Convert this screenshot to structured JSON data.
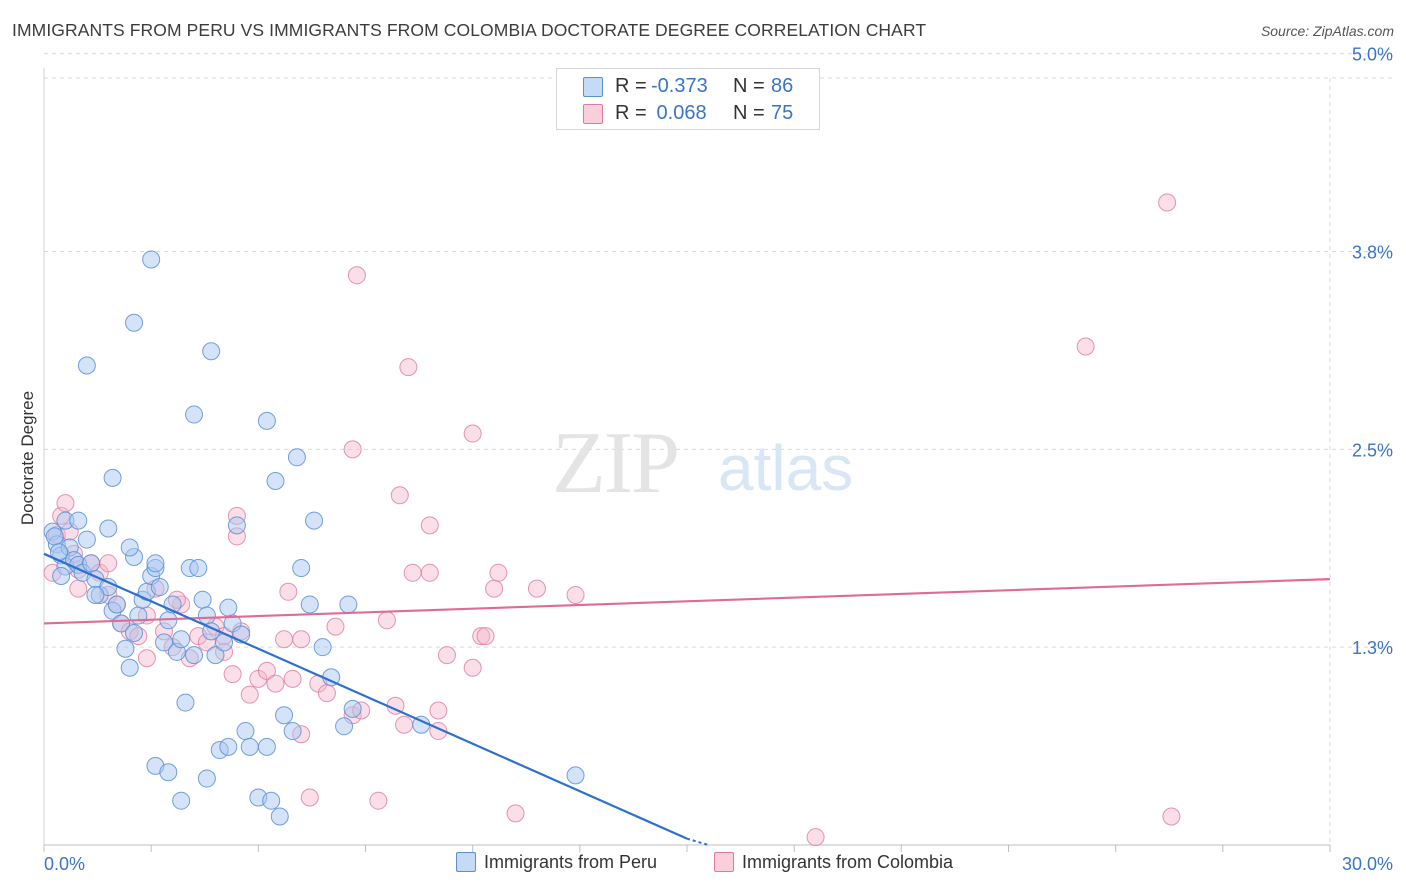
{
  "header": {
    "title": "IMMIGRANTS FROM PERU VS IMMIGRANTS FROM COLOMBIA DOCTORATE DEGREE CORRELATION CHART",
    "source": "Source: ZipAtlas.com"
  },
  "legend": {
    "rows": [
      {
        "r_label": "R =",
        "r_value": "-0.373",
        "n_label": "N =",
        "n_value": "86"
      },
      {
        "r_label": "R =",
        "r_value": " 0.068",
        "n_label": "N =",
        "n_value": "75"
      }
    ]
  },
  "watermark": {
    "zip": "ZIP",
    "atlas": "atlas"
  },
  "colors": {
    "peru_fill": "#a9c8ef",
    "peru_stroke": "#5b8fd6",
    "peru_line": "#2f6fcf",
    "colombia_fill": "#f5b8cb",
    "colombia_stroke": "#e07a9c",
    "colombia_line": "#e06b95",
    "axis_label": "#3a74c6",
    "grid": "#d9d9d9"
  },
  "chart_data": {
    "type": "scatter",
    "title": "IMMIGRANTS FROM PERU VS IMMIGRANTS FROM COLOMBIA DOCTORATE DEGREE CORRELATION CHART",
    "xlabel": "",
    "ylabel": "Doctorate Degree",
    "xlim": [
      0,
      30
    ],
    "ylim": [
      0,
      5.15
    ],
    "x_tick_labels": [
      {
        "value": 0,
        "label": "0.0%"
      },
      {
        "value": 30,
        "label": "30.0%"
      }
    ],
    "y_tick_labels": [
      {
        "value": 1.25,
        "label": "1.3%"
      },
      {
        "value": 2.5,
        "label": "2.5%"
      },
      {
        "value": 3.75,
        "label": "3.8%"
      },
      {
        "value": 5.0,
        "label": "5.0%"
      }
    ],
    "grid": true,
    "series": [
      {
        "name": "Immigrants from Peru",
        "r": -0.373,
        "n": 86,
        "trend": {
          "x": [
            0,
            15.0
          ],
          "y": [
            1.84,
            0.04
          ]
        },
        "points": [
          [
            0.2,
            1.98
          ],
          [
            0.3,
            1.9
          ],
          [
            0.4,
            1.83
          ],
          [
            0.5,
            1.76
          ],
          [
            0.6,
            1.88
          ],
          [
            0.7,
            1.8
          ],
          [
            0.8,
            1.77
          ],
          [
            0.9,
            1.72
          ],
          [
            0.25,
            1.95
          ],
          [
            0.35,
            1.85
          ],
          [
            1.0,
            1.93
          ],
          [
            1.1,
            1.78
          ],
          [
            1.2,
            1.68
          ],
          [
            1.3,
            1.58
          ],
          [
            1.5,
            1.63
          ],
          [
            1.6,
            1.48
          ],
          [
            1.7,
            1.52
          ],
          [
            1.8,
            1.4
          ],
          [
            1.9,
            1.24
          ],
          [
            2.0,
            1.12
          ],
          [
            2.1,
            1.34
          ],
          [
            2.2,
            1.45
          ],
          [
            2.3,
            1.55
          ],
          [
            2.4,
            1.6
          ],
          [
            2.5,
            1.7
          ],
          [
            2.6,
            1.75
          ],
          [
            2.7,
            1.63
          ],
          [
            2.8,
            1.28
          ],
          [
            2.9,
            1.42
          ],
          [
            3.0,
            1.52
          ],
          [
            3.1,
            1.22
          ],
          [
            3.2,
            1.3
          ],
          [
            3.3,
            0.9
          ],
          [
            3.4,
            1.75
          ],
          [
            3.5,
            1.2
          ],
          [
            3.6,
            1.75
          ],
          [
            3.7,
            1.55
          ],
          [
            3.8,
            1.45
          ],
          [
            3.9,
            1.35
          ],
          [
            4.0,
            1.2
          ],
          [
            4.1,
            0.6
          ],
          [
            4.2,
            1.28
          ],
          [
            4.3,
            1.5
          ],
          [
            4.4,
            1.4
          ],
          [
            4.5,
            2.02
          ],
          [
            4.6,
            1.33
          ],
          [
            4.7,
            0.72
          ],
          [
            4.8,
            0.62
          ],
          [
            5.0,
            0.3
          ],
          [
            5.2,
            0.62
          ],
          [
            5.3,
            0.28
          ],
          [
            5.5,
            0.18
          ],
          [
            5.6,
            0.82
          ],
          [
            5.8,
            0.72
          ],
          [
            6.0,
            1.75
          ],
          [
            6.2,
            1.52
          ],
          [
            6.5,
            1.25
          ],
          [
            6.7,
            1.06
          ],
          [
            7.0,
            0.75
          ],
          [
            7.1,
            1.52
          ],
          [
            7.2,
            0.86
          ],
          [
            0.5,
            2.05
          ],
          [
            0.8,
            2.05
          ],
          [
            1.5,
            2.0
          ],
          [
            1.6,
            2.32
          ],
          [
            2.1,
            1.82
          ],
          [
            2.6,
            0.5
          ],
          [
            2.9,
            0.46
          ],
          [
            3.2,
            0.28
          ],
          [
            3.8,
            0.42
          ],
          [
            1.0,
            3.03
          ],
          [
            2.1,
            3.3
          ],
          [
            2.5,
            3.7
          ],
          [
            3.5,
            2.72
          ],
          [
            3.9,
            3.12
          ],
          [
            5.2,
            2.68
          ],
          [
            5.4,
            2.3
          ],
          [
            5.9,
            2.45
          ],
          [
            6.3,
            2.05
          ],
          [
            0.4,
            1.7
          ],
          [
            1.2,
            1.58
          ],
          [
            2.0,
            1.88
          ],
          [
            2.6,
            1.78
          ],
          [
            12.4,
            0.44
          ],
          [
            8.8,
            0.76
          ],
          [
            4.3,
            0.62
          ]
        ]
      },
      {
        "name": "Immigrants from Colombia",
        "r": 0.068,
        "n": 75,
        "trend": {
          "x": [
            0,
            30
          ],
          "y": [
            1.4,
            1.68
          ]
        },
        "points": [
          [
            0.2,
            1.72
          ],
          [
            0.3,
            1.96
          ],
          [
            0.4,
            2.08
          ],
          [
            0.5,
            2.16
          ],
          [
            0.6,
            1.98
          ],
          [
            0.7,
            1.84
          ],
          [
            0.8,
            1.74
          ],
          [
            1.1,
            1.78
          ],
          [
            1.3,
            1.72
          ],
          [
            1.5,
            1.58
          ],
          [
            1.7,
            1.52
          ],
          [
            1.8,
            1.4
          ],
          [
            2.0,
            1.35
          ],
          [
            2.2,
            1.32
          ],
          [
            2.4,
            1.45
          ],
          [
            2.6,
            1.62
          ],
          [
            2.8,
            1.35
          ],
          [
            3.0,
            1.25
          ],
          [
            3.2,
            1.52
          ],
          [
            3.4,
            1.18
          ],
          [
            3.6,
            1.32
          ],
          [
            3.8,
            1.28
          ],
          [
            4.0,
            1.38
          ],
          [
            4.2,
            1.22
          ],
          [
            4.4,
            1.08
          ],
          [
            4.6,
            1.35
          ],
          [
            4.8,
            0.95
          ],
          [
            5.0,
            1.05
          ],
          [
            5.2,
            1.1
          ],
          [
            5.4,
            1.02
          ],
          [
            5.6,
            1.3
          ],
          [
            5.8,
            1.05
          ],
          [
            6.0,
            0.7
          ],
          [
            6.2,
            0.3
          ],
          [
            6.4,
            1.02
          ],
          [
            6.6,
            0.96
          ],
          [
            6.8,
            1.38
          ],
          [
            7.2,
            0.82
          ],
          [
            7.4,
            0.85
          ],
          [
            7.8,
            0.28
          ],
          [
            8.0,
            1.42
          ],
          [
            8.2,
            0.88
          ],
          [
            8.4,
            0.76
          ],
          [
            8.6,
            1.72
          ],
          [
            9.0,
            1.72
          ],
          [
            9.2,
            0.85
          ],
          [
            9.4,
            1.2
          ],
          [
            10.0,
            1.12
          ],
          [
            10.2,
            1.32
          ],
          [
            10.5,
            1.62
          ],
          [
            11.0,
            0.2
          ],
          [
            12.4,
            1.58
          ],
          [
            18.0,
            0.05
          ],
          [
            26.3,
            0.18
          ],
          [
            24.3,
            3.15
          ],
          [
            26.2,
            4.06
          ],
          [
            7.3,
            3.6
          ],
          [
            8.5,
            3.02
          ],
          [
            10.0,
            2.6
          ],
          [
            7.2,
            2.5
          ],
          [
            8.3,
            2.21
          ],
          [
            9.0,
            2.02
          ],
          [
            10.6,
            1.72
          ],
          [
            4.5,
            2.08
          ],
          [
            4.5,
            1.95
          ],
          [
            3.1,
            1.55
          ],
          [
            5.7,
            1.6
          ],
          [
            9.2,
            0.72
          ],
          [
            10.3,
            1.32
          ],
          [
            0.8,
            1.62
          ],
          [
            1.5,
            1.78
          ],
          [
            2.4,
            1.18
          ],
          [
            4.2,
            1.32
          ],
          [
            6.0,
            1.3
          ],
          [
            11.5,
            1.62
          ]
        ]
      }
    ]
  },
  "bottom_legend": {
    "peru_label": "Immigrants from Peru",
    "colombia_label": "Immigrants from Colombia"
  }
}
